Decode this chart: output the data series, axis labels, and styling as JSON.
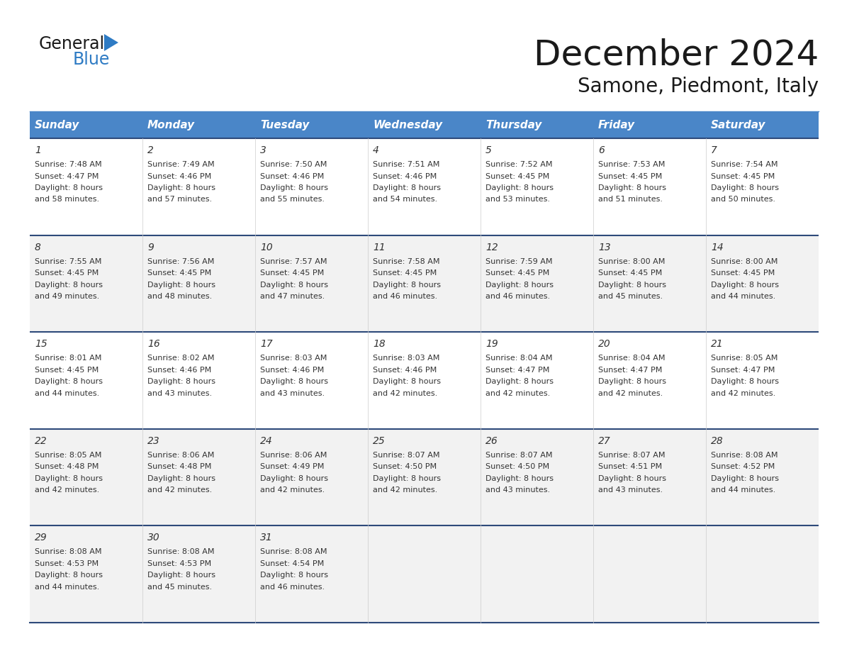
{
  "title": "December 2024",
  "subtitle": "Samone, Piedmont, Italy",
  "header_color": "#4A86C8",
  "header_text_color": "#FFFFFF",
  "day_names": [
    "Sunday",
    "Monday",
    "Tuesday",
    "Wednesday",
    "Thursday",
    "Friday",
    "Saturday"
  ],
  "row_colors": [
    "#FFFFFF",
    "#F2F2F2",
    "#FFFFFF",
    "#F2F2F2",
    "#F2F2F2"
  ],
  "white_color": "#FFFFFF",
  "separator_color": "#2E4A7A",
  "text_color": "#333333",
  "date_font_size": 10,
  "content_font_size": 8,
  "header_font_size": 11,
  "title_font_size": 36,
  "subtitle_font_size": 20,
  "calendar": [
    [
      {
        "day": 1,
        "sunrise": "7:48 AM",
        "sunset": "4:47 PM",
        "daylight": "8 hours and 58 minutes"
      },
      {
        "day": 2,
        "sunrise": "7:49 AM",
        "sunset": "4:46 PM",
        "daylight": "8 hours and 57 minutes"
      },
      {
        "day": 3,
        "sunrise": "7:50 AM",
        "sunset": "4:46 PM",
        "daylight": "8 hours and 55 minutes"
      },
      {
        "day": 4,
        "sunrise": "7:51 AM",
        "sunset": "4:46 PM",
        "daylight": "8 hours and 54 minutes"
      },
      {
        "day": 5,
        "sunrise": "7:52 AM",
        "sunset": "4:45 PM",
        "daylight": "8 hours and 53 minutes"
      },
      {
        "day": 6,
        "sunrise": "7:53 AM",
        "sunset": "4:45 PM",
        "daylight": "8 hours and 51 minutes"
      },
      {
        "day": 7,
        "sunrise": "7:54 AM",
        "sunset": "4:45 PM",
        "daylight": "8 hours and 50 minutes"
      }
    ],
    [
      {
        "day": 8,
        "sunrise": "7:55 AM",
        "sunset": "4:45 PM",
        "daylight": "8 hours and 49 minutes"
      },
      {
        "day": 9,
        "sunrise": "7:56 AM",
        "sunset": "4:45 PM",
        "daylight": "8 hours and 48 minutes"
      },
      {
        "day": 10,
        "sunrise": "7:57 AM",
        "sunset": "4:45 PM",
        "daylight": "8 hours and 47 minutes"
      },
      {
        "day": 11,
        "sunrise": "7:58 AM",
        "sunset": "4:45 PM",
        "daylight": "8 hours and 46 minutes"
      },
      {
        "day": 12,
        "sunrise": "7:59 AM",
        "sunset": "4:45 PM",
        "daylight": "8 hours and 46 minutes"
      },
      {
        "day": 13,
        "sunrise": "8:00 AM",
        "sunset": "4:45 PM",
        "daylight": "8 hours and 45 minutes"
      },
      {
        "day": 14,
        "sunrise": "8:00 AM",
        "sunset": "4:45 PM",
        "daylight": "8 hours and 44 minutes"
      }
    ],
    [
      {
        "day": 15,
        "sunrise": "8:01 AM",
        "sunset": "4:45 PM",
        "daylight": "8 hours and 44 minutes"
      },
      {
        "day": 16,
        "sunrise": "8:02 AM",
        "sunset": "4:46 PM",
        "daylight": "8 hours and 43 minutes"
      },
      {
        "day": 17,
        "sunrise": "8:03 AM",
        "sunset": "4:46 PM",
        "daylight": "8 hours and 43 minutes"
      },
      {
        "day": 18,
        "sunrise": "8:03 AM",
        "sunset": "4:46 PM",
        "daylight": "8 hours and 42 minutes"
      },
      {
        "day": 19,
        "sunrise": "8:04 AM",
        "sunset": "4:47 PM",
        "daylight": "8 hours and 42 minutes"
      },
      {
        "day": 20,
        "sunrise": "8:04 AM",
        "sunset": "4:47 PM",
        "daylight": "8 hours and 42 minutes"
      },
      {
        "day": 21,
        "sunrise": "8:05 AM",
        "sunset": "4:47 PM",
        "daylight": "8 hours and 42 minutes"
      }
    ],
    [
      {
        "day": 22,
        "sunrise": "8:05 AM",
        "sunset": "4:48 PM",
        "daylight": "8 hours and 42 minutes"
      },
      {
        "day": 23,
        "sunrise": "8:06 AM",
        "sunset": "4:48 PM",
        "daylight": "8 hours and 42 minutes"
      },
      {
        "day": 24,
        "sunrise": "8:06 AM",
        "sunset": "4:49 PM",
        "daylight": "8 hours and 42 minutes"
      },
      {
        "day": 25,
        "sunrise": "8:07 AM",
        "sunset": "4:50 PM",
        "daylight": "8 hours and 42 minutes"
      },
      {
        "day": 26,
        "sunrise": "8:07 AM",
        "sunset": "4:50 PM",
        "daylight": "8 hours and 43 minutes"
      },
      {
        "day": 27,
        "sunrise": "8:07 AM",
        "sunset": "4:51 PM",
        "daylight": "8 hours and 43 minutes"
      },
      {
        "day": 28,
        "sunrise": "8:08 AM",
        "sunset": "4:52 PM",
        "daylight": "8 hours and 44 minutes"
      }
    ],
    [
      {
        "day": 29,
        "sunrise": "8:08 AM",
        "sunset": "4:53 PM",
        "daylight": "8 hours and 44 minutes"
      },
      {
        "day": 30,
        "sunrise": "8:08 AM",
        "sunset": "4:53 PM",
        "daylight": "8 hours and 45 minutes"
      },
      {
        "day": 31,
        "sunrise": "8:08 AM",
        "sunset": "4:54 PM",
        "daylight": "8 hours and 46 minutes"
      },
      null,
      null,
      null,
      null
    ]
  ]
}
